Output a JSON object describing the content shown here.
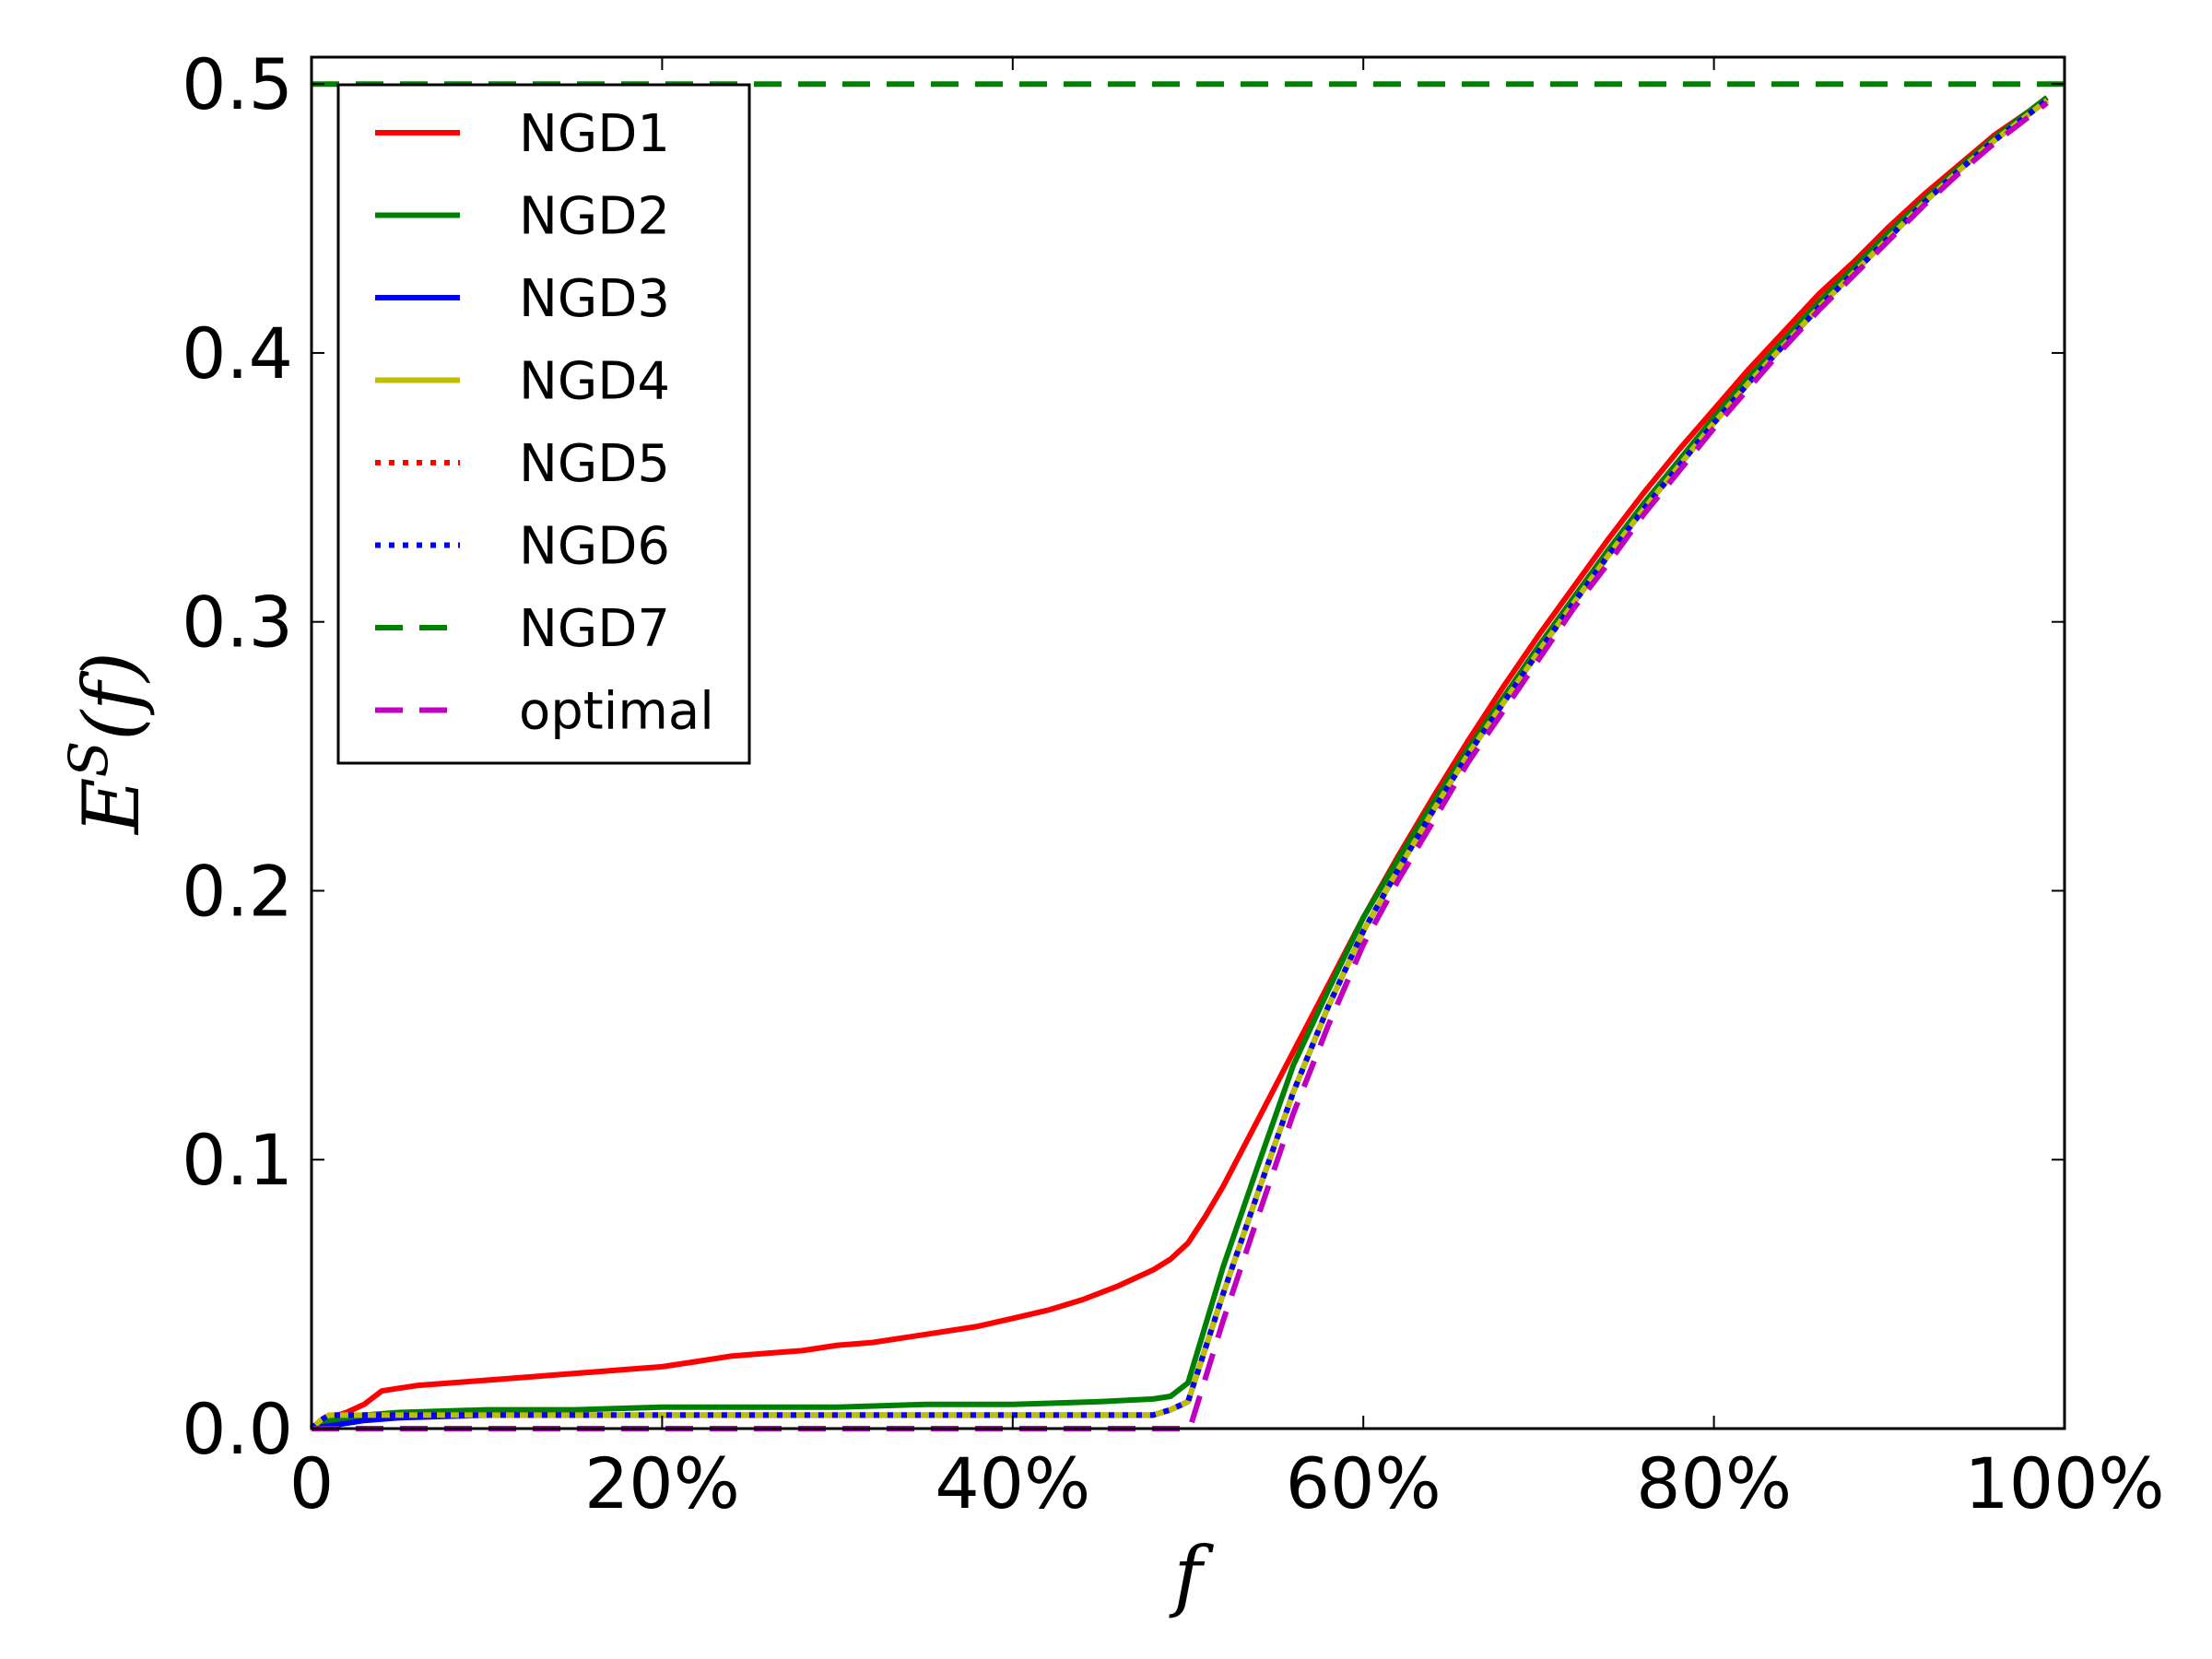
{
  "chart_data": {
    "type": "line",
    "xlabel": "f",
    "ylabel": "E^S(f)",
    "ylabel_base": "E",
    "ylabel_sup": "S",
    "ylabel_arg": "(f)",
    "xlim": [
      0,
      100
    ],
    "ylim": [
      0,
      0.51
    ],
    "x_ticks": [
      0,
      20,
      40,
      60,
      80,
      100
    ],
    "x_tick_labels": [
      "0",
      "20%",
      "40%",
      "60%",
      "80%",
      "100%"
    ],
    "y_ticks": [
      0.0,
      0.1,
      0.2,
      0.3,
      0.4,
      0.5
    ],
    "y_tick_labels": [
      "0.0",
      "0.1",
      "0.2",
      "0.3",
      "0.4",
      "0.5"
    ],
    "grid": false,
    "legend_position": "top-left",
    "series": [
      {
        "name": "NGD1",
        "color": "#ff0000",
        "style": "solid",
        "x": [
          0,
          1,
          2,
          3,
          4,
          5,
          6,
          8,
          10,
          12,
          14,
          16,
          18,
          20,
          22,
          24,
          26,
          28,
          30,
          32,
          34,
          36,
          38,
          40,
          42,
          44,
          46,
          48,
          49,
          50,
          51,
          52,
          54,
          56,
          58,
          60,
          62,
          64,
          66,
          68,
          70,
          72,
          74,
          76,
          78,
          80,
          82,
          84,
          86,
          88,
          90,
          92,
          94,
          96,
          98,
          99
        ],
        "y": [
          0,
          0.004,
          0.006,
          0.009,
          0.014,
          0.015,
          0.016,
          0.017,
          0.018,
          0.019,
          0.02,
          0.021,
          0.022,
          0.023,
          0.025,
          0.027,
          0.028,
          0.029,
          0.031,
          0.032,
          0.034,
          0.036,
          0.038,
          0.041,
          0.044,
          0.048,
          0.053,
          0.059,
          0.063,
          0.069,
          0.079,
          0.09,
          0.115,
          0.14,
          0.165,
          0.19,
          0.213,
          0.235,
          0.256,
          0.276,
          0.295,
          0.313,
          0.331,
          0.348,
          0.364,
          0.379,
          0.394,
          0.408,
          0.422,
          0.434,
          0.447,
          0.459,
          0.47,
          0.481,
          0.49,
          0.495
        ]
      },
      {
        "name": "NGD2",
        "color": "#008000",
        "style": "solid",
        "x": [
          0,
          1,
          2,
          3,
          5,
          10,
          15,
          20,
          25,
          30,
          35,
          40,
          45,
          48,
          49,
          50,
          52,
          54,
          56,
          58,
          60,
          62,
          64,
          66,
          68,
          70,
          72,
          74,
          76,
          78,
          80,
          82,
          84,
          86,
          88,
          90,
          92,
          94,
          96,
          98,
          99
        ],
        "y": [
          0,
          0.003,
          0.004,
          0.005,
          0.006,
          0.007,
          0.007,
          0.008,
          0.008,
          0.008,
          0.009,
          0.009,
          0.01,
          0.011,
          0.012,
          0.017,
          0.06,
          0.098,
          0.135,
          0.163,
          0.19,
          0.212,
          0.233,
          0.253,
          0.272,
          0.291,
          0.309,
          0.327,
          0.344,
          0.36,
          0.376,
          0.391,
          0.405,
          0.419,
          0.432,
          0.445,
          0.457,
          0.469,
          0.48,
          0.49,
          0.495
        ]
      },
      {
        "name": "NGD3",
        "color": "#0000ff",
        "style": "solid",
        "x": [
          0,
          1,
          2,
          3,
          5,
          10,
          20,
          30,
          40,
          48,
          49,
          50,
          52,
          54,
          56,
          58,
          60,
          62,
          64,
          66,
          68,
          70,
          72,
          74,
          76,
          78,
          80,
          82,
          84,
          86,
          88,
          90,
          92,
          94,
          96,
          98,
          99
        ],
        "y": [
          0,
          0.001,
          0.002,
          0.003,
          0.004,
          0.005,
          0.005,
          0.005,
          0.005,
          0.005,
          0.007,
          0.01,
          0.05,
          0.088,
          0.125,
          0.157,
          0.185,
          0.208,
          0.23,
          0.251,
          0.27,
          0.289,
          0.307,
          0.325,
          0.342,
          0.358,
          0.374,
          0.389,
          0.403,
          0.417,
          0.43,
          0.443,
          0.456,
          0.468,
          0.479,
          0.489,
          0.494
        ]
      },
      {
        "name": "NGD4",
        "color": "#bfbf00",
        "style": "solid",
        "x": [
          0,
          0.5,
          1,
          2,
          3,
          5,
          10,
          20,
          30,
          40,
          48,
          49,
          50,
          52,
          54,
          56,
          58,
          60,
          62,
          64,
          66,
          68,
          70,
          72,
          74,
          76,
          78,
          80,
          82,
          84,
          86,
          88,
          90,
          92,
          94,
          96,
          98,
          99
        ],
        "y": [
          0,
          0.003,
          0.005,
          0.005,
          0.005,
          0.005,
          0.005,
          0.005,
          0.005,
          0.005,
          0.005,
          0.007,
          0.01,
          0.05,
          0.088,
          0.125,
          0.157,
          0.185,
          0.208,
          0.23,
          0.251,
          0.27,
          0.289,
          0.307,
          0.325,
          0.342,
          0.358,
          0.374,
          0.389,
          0.403,
          0.417,
          0.43,
          0.443,
          0.456,
          0.468,
          0.479,
          0.489,
          0.494
        ]
      },
      {
        "name": "NGD5",
        "color": "#ff0000",
        "style": "dotted",
        "x": [
          0,
          0.5,
          1,
          2,
          3,
          5,
          10,
          20,
          30,
          40,
          48,
          49,
          50,
          52,
          54,
          56,
          58,
          60,
          62,
          64,
          66,
          68,
          70,
          72,
          74,
          76,
          78,
          80,
          82,
          84,
          86,
          88,
          90,
          92,
          94,
          96,
          98,
          99
        ],
        "y": [
          0,
          0.003,
          0.005,
          0.005,
          0.005,
          0.005,
          0.005,
          0.005,
          0.005,
          0.005,
          0.005,
          0.007,
          0.01,
          0.05,
          0.088,
          0.125,
          0.157,
          0.185,
          0.208,
          0.23,
          0.251,
          0.27,
          0.289,
          0.307,
          0.325,
          0.342,
          0.358,
          0.374,
          0.389,
          0.403,
          0.417,
          0.43,
          0.443,
          0.456,
          0.468,
          0.479,
          0.489,
          0.494
        ]
      },
      {
        "name": "NGD6",
        "color": "#0000ff",
        "style": "dotted",
        "x": [
          0,
          0.5,
          1,
          2,
          3,
          5,
          10,
          20,
          30,
          40,
          48,
          49,
          50,
          52,
          54,
          56,
          58,
          60,
          62,
          64,
          66,
          68,
          70,
          72,
          74,
          76,
          78,
          80,
          82,
          84,
          86,
          88,
          90,
          92,
          94,
          96,
          98,
          99
        ],
        "y": [
          0,
          0.003,
          0.005,
          0.005,
          0.005,
          0.005,
          0.005,
          0.005,
          0.005,
          0.005,
          0.005,
          0.007,
          0.01,
          0.05,
          0.088,
          0.125,
          0.157,
          0.185,
          0.208,
          0.23,
          0.251,
          0.27,
          0.289,
          0.307,
          0.325,
          0.342,
          0.358,
          0.374,
          0.389,
          0.403,
          0.417,
          0.43,
          0.443,
          0.456,
          0.468,
          0.479,
          0.489,
          0.494
        ]
      },
      {
        "name": "NGD7",
        "color": "#008000",
        "style": "dashed",
        "x": [
          0,
          100
        ],
        "y": [
          0.5,
          0.5
        ]
      },
      {
        "name": "optimal",
        "color": "#bf00bf",
        "style": "dashed",
        "x": [
          0,
          50,
          50.1,
          52,
          54,
          56,
          58,
          60,
          62,
          64,
          66,
          68,
          70,
          72,
          74,
          76,
          78,
          80,
          82,
          84,
          86,
          88,
          90,
          92,
          94,
          96,
          98,
          99
        ],
        "y": [
          0,
          0,
          0,
          0.04,
          0.079,
          0.117,
          0.15,
          0.18,
          0.204,
          0.226,
          0.248,
          0.267,
          0.286,
          0.305,
          0.322,
          0.34,
          0.356,
          0.372,
          0.387,
          0.402,
          0.416,
          0.429,
          0.442,
          0.455,
          0.467,
          0.478,
          0.488,
          0.493
        ]
      }
    ]
  }
}
